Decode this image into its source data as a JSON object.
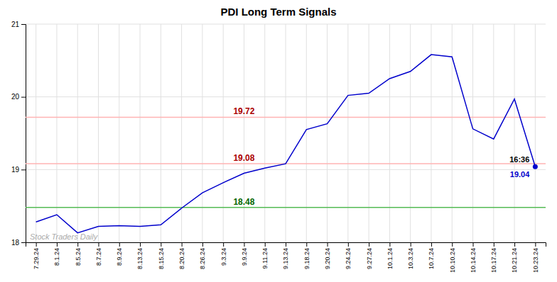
{
  "chart_data": {
    "type": "line",
    "title": "PDI Long Term Signals",
    "categories": [
      "7.29.24",
      "8.1.24",
      "8.5.24",
      "8.7.24",
      "8.9.24",
      "8.13.24",
      "8.15.24",
      "8.20.24",
      "8.26.24",
      "9.3.24",
      "9.9.24",
      "9.11.24",
      "9.13.24",
      "9.18.24",
      "9.20.24",
      "9.24.24",
      "9.27.24",
      "10.1.24",
      "10.3.24",
      "10.7.24",
      "10.10.24",
      "10.14.24",
      "10.17.24",
      "10.21.24",
      "10.23.24"
    ],
    "values": [
      18.28,
      18.38,
      18.13,
      18.22,
      18.23,
      18.22,
      18.24,
      18.47,
      18.68,
      18.82,
      18.95,
      19.02,
      19.08,
      19.55,
      19.63,
      20.02,
      20.05,
      20.25,
      20.35,
      20.58,
      20.55,
      19.56,
      19.42,
      19.97,
      19.04
    ],
    "color": "#0000cc",
    "ylim": [
      18.0,
      21.0
    ],
    "yticks": [
      18,
      19,
      20,
      21
    ],
    "grid": true,
    "annotations": [
      {
        "type": "hline",
        "value": 19.72,
        "label": "19.72",
        "color": "#aa0000",
        "line_color": "#ffb3b3"
      },
      {
        "type": "hline",
        "value": 19.08,
        "label": "19.08",
        "color": "#aa0000",
        "line_color": "#ffb3b3"
      },
      {
        "type": "hline",
        "value": 18.48,
        "label": "18.48",
        "color": "#006600",
        "line_color": "#55bb55"
      },
      {
        "type": "last_point",
        "value": 19.04,
        "label": "19.04",
        "time": "16:36",
        "color": "#0000cc"
      },
      {
        "type": "watermark",
        "text": "Stock Traders Daily",
        "color": "#aaaaaa"
      }
    ]
  }
}
